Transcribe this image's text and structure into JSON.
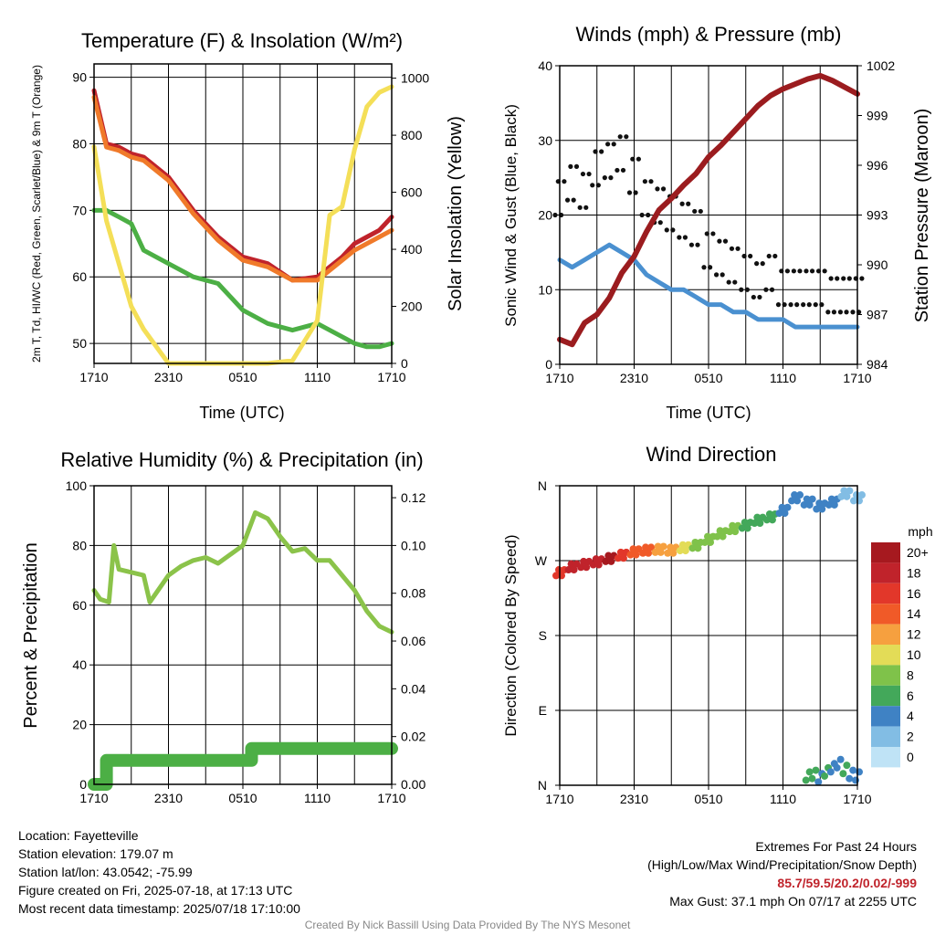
{
  "chart_data": [
    {
      "type": "line",
      "title": "Temperature (F) & Insolation (W/m²)",
      "xlabel": "Time (UTC)",
      "ylabel": "2m T, Td, HI/WC (Red, Green, Scarlet/Blue) & 9m T (Orange)",
      "ylabel_right": "Solar Insolation (Yellow)",
      "x_ticks": [
        "1710",
        "2310",
        "0510",
        "1110",
        "1710"
      ],
      "ylim": [
        47,
        92
      ],
      "y_ticks": [
        50,
        60,
        70,
        80,
        90
      ],
      "ylim_right": [
        0,
        1050
      ],
      "y_ticks_right": [
        0,
        200,
        400,
        600,
        800,
        1000
      ],
      "x_hours": [
        0,
        1,
        2,
        3,
        4,
        6,
        8,
        10,
        12,
        14,
        16,
        18,
        19,
        20,
        21,
        22,
        23,
        24
      ],
      "series": [
        {
          "key": "temp",
          "color": "#c0232b",
          "values": [
            88,
            80,
            79.5,
            78.5,
            78,
            75,
            70,
            66,
            63,
            62,
            59.5,
            60,
            61.5,
            63,
            65,
            66,
            67,
            69
          ]
        },
        {
          "key": "temp9m",
          "color": "#f07a2a",
          "values": [
            87,
            79.5,
            79,
            78,
            77.5,
            74.5,
            69.5,
            65.5,
            62.5,
            61.5,
            59.5,
            59.5,
            61,
            62.5,
            64,
            65,
            66,
            67
          ]
        },
        {
          "key": "dewpoint",
          "color": "#4caf45",
          "values": [
            70,
            70,
            69,
            68,
            64,
            62,
            60,
            59,
            55,
            53,
            52,
            53,
            52,
            51,
            50,
            49.5,
            49.5,
            50
          ]
        },
        {
          "key": "insolation",
          "color": "#f4df58",
          "axis": "right",
          "values": [
            760,
            500,
            350,
            200,
            120,
            0,
            0,
            0,
            0,
            0,
            10,
            150,
            520,
            550,
            750,
            900,
            950,
            970
          ]
        }
      ]
    },
    {
      "type": "line",
      "title": "Winds (mph) & Pressure (mb)",
      "xlabel": "Time (UTC)",
      "ylabel": "Sonic Wind & Gust (Blue, Black)",
      "ylabel_right": "Station Pressure (Maroon)",
      "x_ticks": [
        "1710",
        "2310",
        "0510",
        "1110",
        "1710"
      ],
      "ylim": [
        0,
        40
      ],
      "y_ticks": [
        0,
        10,
        20,
        30,
        40
      ],
      "ylim_right": [
        984,
        1002
      ],
      "y_ticks_right": [
        984,
        987,
        990,
        993,
        996,
        999,
        1002
      ],
      "x_hours": [
        0,
        1,
        2,
        3,
        4,
        5,
        6,
        7,
        8,
        9,
        10,
        11,
        12,
        13,
        14,
        15,
        16,
        17,
        18,
        19,
        20,
        21,
        22,
        23,
        24
      ],
      "series": [
        {
          "key": "wind",
          "color": "#4a90d0",
          "values": [
            14,
            13,
            14,
            15,
            16,
            15,
            14,
            12,
            11,
            10,
            10,
            9,
            8,
            8,
            7,
            7,
            6,
            6,
            6,
            5,
            5,
            5,
            5,
            5,
            5
          ]
        },
        {
          "key": "gust",
          "color": "#111111",
          "points": true,
          "values": [
            22,
            24,
            23,
            26,
            27,
            28,
            25,
            22,
            21,
            20,
            19,
            18,
            15,
            14,
            13,
            12,
            11,
            12,
            10,
            10,
            10,
            10,
            9,
            9,
            9
          ]
        },
        {
          "key": "pressure",
          "color": "#9b1c1f",
          "axis": "right",
          "values": [
            985.5,
            985.2,
            986.5,
            987,
            988,
            989.5,
            990.5,
            992,
            993.3,
            994,
            994.8,
            995.5,
            996.5,
            997.2,
            998,
            998.8,
            999.6,
            1000.2,
            1000.6,
            1000.9,
            1001.2,
            1001.4,
            1001.1,
            1000.7,
            1000.3
          ]
        }
      ]
    },
    {
      "type": "line",
      "title": "Relative Humidity (%) & Precipitation (in)",
      "ylabel": "Percent & Precipitation",
      "x_ticks": [
        "1710",
        "2310",
        "0510",
        "1110",
        "1710"
      ],
      "ylim": [
        0,
        100
      ],
      "y_ticks": [
        0,
        20,
        40,
        60,
        80,
        100
      ],
      "ylim_right": [
        0,
        0.125
      ],
      "y_ticks_right": [
        "0.00",
        "0.02",
        "0.04",
        "0.06",
        "0.08",
        "0.10",
        "0.12"
      ],
      "x_hours": [
        0,
        0.5,
        1.2,
        1.6,
        2,
        3,
        4,
        4.5,
        5,
        6,
        7,
        8,
        9,
        10,
        12,
        13,
        14,
        15,
        16,
        17,
        18,
        19,
        20,
        21,
        22,
        23,
        24
      ],
      "series": [
        {
          "key": "rh",
          "color": "#8bc34a",
          "values": [
            65,
            62,
            61,
            80,
            72,
            71,
            70,
            61,
            64,
            70,
            73,
            75,
            76,
            74,
            80,
            91,
            89,
            83,
            78,
            79,
            75,
            75,
            70,
            65,
            58,
            53,
            51
          ]
        },
        {
          "key": "precip",
          "color": "#4caf45",
          "axis": "right",
          "step": true,
          "x": [
            0,
            1,
            1,
            12.7,
            12.7,
            24
          ],
          "values": [
            0,
            0,
            0.01,
            0.01,
            0.015,
            0.015
          ]
        }
      ]
    },
    {
      "type": "scatter",
      "title": "Wind Direction",
      "ylabel": "Direction (Colored By Speed)",
      "x_ticks": [
        "1710",
        "2310",
        "0510",
        "1110",
        "1710"
      ],
      "y_ticks": [
        "N",
        "E",
        "S",
        "W",
        "N"
      ],
      "ylim": [
        0,
        360
      ],
      "legend_title": "mph",
      "legend": [
        "20+",
        "18",
        "16",
        "14",
        "12",
        "10",
        "8",
        "6",
        "4",
        "2",
        "0"
      ],
      "legend_colors": [
        "#a6191f",
        "#c0232b",
        "#e2372a",
        "#f05a28",
        "#f6a03f",
        "#e3dc57",
        "#7fc24a",
        "#43a85a",
        "#3f82c4",
        "#82bde4",
        "#bfe3f6"
      ],
      "x_hours": [
        0,
        1,
        2,
        3,
        4,
        5,
        6,
        7,
        8,
        9,
        10,
        11,
        12,
        13,
        14,
        15,
        16,
        17,
        18,
        19,
        20,
        21,
        22,
        23,
        24
      ],
      "directions": [
        255,
        262,
        265,
        268,
        272,
        276,
        280,
        282,
        283,
        282,
        285,
        288,
        295,
        302,
        308,
        312,
        318,
        322,
        330,
        345,
        340,
        335,
        340,
        350,
        345
      ],
      "speeds": [
        16,
        17,
        17,
        18,
        19,
        16,
        14,
        13,
        12,
        11,
        10,
        8,
        8,
        7,
        7,
        6,
        5,
        5,
        4,
        4,
        3,
        3,
        3,
        2,
        2
      ],
      "late_north": {
        "x_hours": [
          20,
          20.5,
          21,
          21.5,
          22,
          22.5,
          23,
          23.5,
          24
        ],
        "directions": [
          10,
          12,
          8,
          15,
          20,
          25,
          18,
          12,
          10
        ],
        "speeds": [
          6,
          5,
          4,
          6,
          4,
          3,
          5,
          4,
          3
        ]
      }
    }
  ],
  "footer": {
    "location": "Location: Fayetteville",
    "elevation": "Station elevation: 179.07 m",
    "latlon": "Station lat/lon: 43.0542; -75.99",
    "created": "Figure created on Fri, 2025-07-18, at 17:13 UTC",
    "recent": "Most recent data timestamp: 2025/07/18 17:10:00",
    "extremes_title": "Extremes For Past 24 Hours",
    "extremes_desc": "(High/Low/Max Wind/Precipitation/Snow Depth)",
    "extremes_values": "85.7/59.5/20.2/0.02/-999",
    "max_gust": "Max Gust: 37.1 mph On 07/17 at 2255 UTC",
    "credit": "Created By Nick Bassill Using Data Provided By The NYS Mesonet"
  }
}
